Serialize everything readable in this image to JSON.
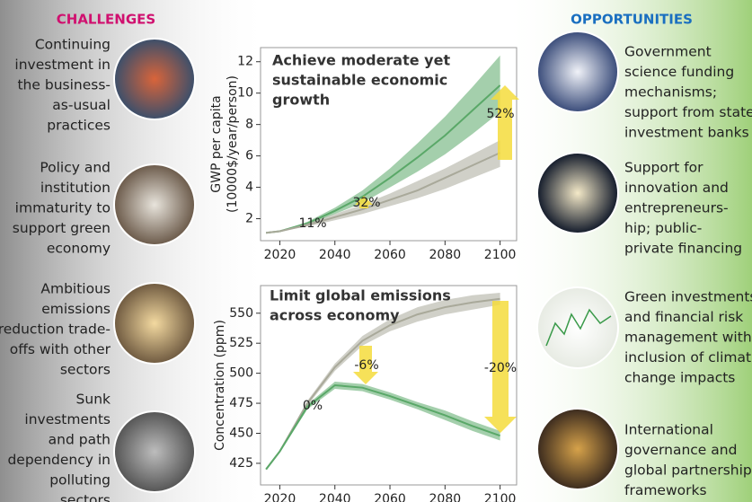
{
  "chart_data": [
    {
      "type": "line",
      "title": [
        "Achieve moderate yet",
        "sustainable economic",
        "growth"
      ],
      "ylabel": [
        "GWP per capita",
        "(10000$/year/person)"
      ],
      "x": [
        2015,
        2020,
        2030,
        2040,
        2050,
        2060,
        2070,
        2080,
        2090,
        2100
      ],
      "series": [
        {
          "color": "#5aa868",
          "values": [
            1.1,
            1.2,
            1.7,
            2.5,
            3.4,
            4.6,
            5.9,
            7.3,
            8.9,
            10.5
          ],
          "low": [
            1.1,
            1.2,
            1.6,
            2.3,
            3.0,
            4.0,
            5.0,
            6.1,
            7.4,
            8.8
          ],
          "high": [
            1.1,
            1.2,
            1.8,
            2.7,
            3.8,
            5.2,
            6.8,
            8.5,
            10.4,
            12.4
          ]
        },
        {
          "color": "#a9a99a",
          "values": [
            1.1,
            1.2,
            1.6,
            2.1,
            2.6,
            3.2,
            3.8,
            4.6,
            5.4,
            6.2
          ],
          "low": [
            1.1,
            1.2,
            1.5,
            1.9,
            2.3,
            2.8,
            3.3,
            3.9,
            4.6,
            5.3
          ],
          "high": [
            1.1,
            1.2,
            1.7,
            2.3,
            2.9,
            3.6,
            4.4,
            5.2,
            6.1,
            7.0
          ]
        }
      ],
      "annotations": [
        "11%",
        "32%",
        "52%"
      ],
      "xlim": [
        2013,
        2106
      ],
      "xticks": [
        2020,
        2040,
        2060,
        2080,
        2100
      ],
      "ylim": [
        0.6,
        12.9
      ],
      "yticks": [
        2,
        4,
        6,
        8,
        10,
        12
      ]
    },
    {
      "type": "line",
      "title": [
        "Limit global emissions",
        "across economy"
      ],
      "ylabel": [
        "Concentration (ppm)"
      ],
      "x": [
        2015,
        2020,
        2030,
        2040,
        2050,
        2060,
        2070,
        2080,
        2090,
        2100
      ],
      "series": [
        {
          "color": "#a9a99a",
          "values": [
            420,
            435,
            475,
            505,
            527,
            540,
            549,
            555,
            559,
            562
          ],
          "low": [
            420,
            434,
            473,
            502,
            523,
            535,
            543,
            549,
            553,
            557
          ],
          "high": [
            420,
            436,
            477,
            508,
            531,
            545,
            555,
            561,
            565,
            567
          ]
        },
        {
          "color": "#5aa868",
          "values": [
            420,
            435,
            472,
            490,
            488,
            481,
            473,
            465,
            456,
            448
          ],
          "low": [
            420,
            434,
            470,
            487,
            485,
            478,
            470,
            461,
            452,
            444
          ],
          "high": [
            420,
            436,
            474,
            493,
            491,
            484,
            476,
            469,
            460,
            452
          ]
        }
      ],
      "annotations": [
        "0%",
        "-6%",
        "-20%"
      ],
      "xlim": [
        2013,
        2106
      ],
      "xticks": [
        2020,
        2040,
        2060,
        2080,
        2100
      ],
      "ylim": [
        407,
        573
      ],
      "yticks": [
        425,
        450,
        475,
        500,
        525,
        550
      ]
    }
  ],
  "challenges": {
    "heading": "CHALLENGES",
    "items": [
      [
        "Continuing",
        "investment in",
        "the business-",
        "as-usual",
        "practices"
      ],
      [
        "Policy and",
        "institution",
        "immaturity to",
        "support green",
        "economy"
      ],
      [
        "Ambitious",
        "emissions",
        "reduction trade-",
        "offs with other",
        "sectors"
      ],
      [
        "Sunk",
        "investments",
        "and path",
        "dependency in",
        "polluting",
        "sectors"
      ]
    ]
  },
  "opportunities": {
    "heading": "OPPORTUNITIES",
    "items": [
      [
        "Government",
        "science funding",
        "mechanisms;",
        "support from state",
        "investment banks"
      ],
      [
        "Support for",
        "innovation and",
        "entrepreneurs-",
        "hip; public-",
        "private financing"
      ],
      [
        "Green investments",
        "and financial risk",
        "management with",
        "inclusion of climate",
        "change impacts"
      ],
      [
        "International",
        "governance and",
        "global partnership",
        "frameworks"
      ]
    ]
  }
}
